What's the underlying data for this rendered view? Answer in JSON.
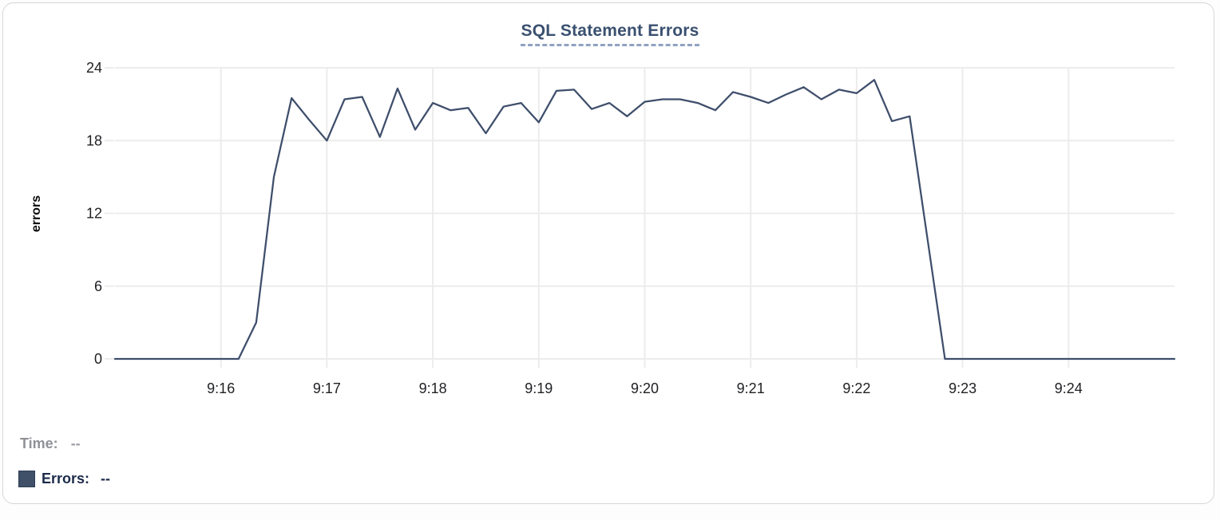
{
  "title": "SQL Statement Errors",
  "legend": {
    "time_label": "Time:",
    "time_value": "--",
    "errors_label": "Errors:",
    "errors_value": "--"
  },
  "colors": {
    "line": "#3e4e6b",
    "title": "#3a5070",
    "title_underline": "#90a2c0",
    "grid": "#ececec",
    "axis_text": "#1f2023",
    "legend_time_text": "#8f9196",
    "legend_errors_text": "#1c2b4a",
    "swatch": "#3f5068",
    "card_border": "#d6d6d6"
  },
  "chart_data": {
    "type": "line",
    "title": "SQL Statement Errors",
    "xlabel": "",
    "ylabel": "errors",
    "ylim": [
      0,
      24
    ],
    "y_ticks": [
      0,
      6,
      12,
      18,
      24
    ],
    "x_ticks": [
      "9:16",
      "9:17",
      "9:18",
      "9:19",
      "9:20",
      "9:21",
      "9:22",
      "9:23",
      "9:24"
    ],
    "x_range": [
      "9:15:00",
      "9:25:00"
    ],
    "grid": true,
    "legend_position": "bottom-left",
    "series": [
      {
        "name": "Errors",
        "color": "#3e4e6b",
        "x": [
          "9:15:00",
          "9:15:10",
          "9:15:20",
          "9:15:30",
          "9:15:40",
          "9:15:50",
          "9:16:00",
          "9:16:10",
          "9:16:20",
          "9:16:30",
          "9:16:40",
          "9:16:50",
          "9:17:00",
          "9:17:10",
          "9:17:20",
          "9:17:30",
          "9:17:40",
          "9:17:50",
          "9:18:00",
          "9:18:10",
          "9:18:20",
          "9:18:30",
          "9:18:40",
          "9:18:50",
          "9:19:00",
          "9:19:10",
          "9:19:20",
          "9:19:30",
          "9:19:40",
          "9:19:50",
          "9:20:00",
          "9:20:10",
          "9:20:20",
          "9:20:30",
          "9:20:40",
          "9:20:50",
          "9:21:00",
          "9:21:10",
          "9:21:20",
          "9:21:30",
          "9:21:40",
          "9:21:50",
          "9:22:00",
          "9:22:10",
          "9:22:20",
          "9:22:30",
          "9:22:40",
          "9:22:50",
          "9:23:00",
          "9:23:10",
          "9:23:20",
          "9:23:30",
          "9:23:40",
          "9:23:50",
          "9:24:00",
          "9:24:10",
          "9:24:20",
          "9:24:30",
          "9:24:40",
          "9:24:50",
          "9:25:00"
        ],
        "values": [
          0,
          0,
          0,
          0,
          0,
          0,
          0,
          0,
          3,
          15,
          21.5,
          19.7,
          18,
          21.4,
          21.6,
          18.3,
          22.3,
          18.9,
          21.1,
          20.5,
          20.7,
          18.6,
          20.8,
          21.1,
          19.5,
          22.1,
          22.2,
          20.6,
          21.1,
          20,
          21.2,
          21.4,
          21.4,
          21.1,
          20.5,
          22,
          21.6,
          21.1,
          21.8,
          22.4,
          21.4,
          22.2,
          21.9,
          23,
          19.6,
          20,
          10,
          0,
          0,
          0,
          0,
          0,
          0,
          0,
          0,
          0,
          0,
          0,
          0,
          0,
          0
        ]
      }
    ]
  }
}
